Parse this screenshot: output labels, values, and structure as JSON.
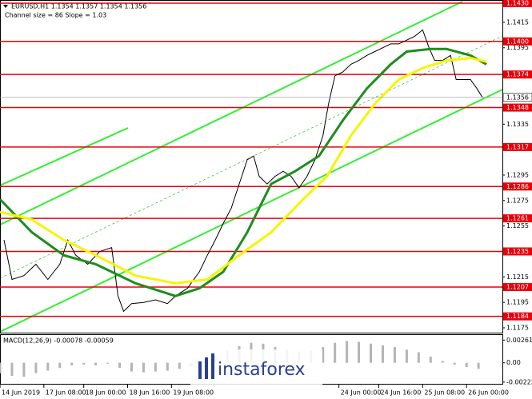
{
  "header": {
    "title": "EURUSD,H1  1.1354 1.1357 1.1354 1.1356",
    "subtitle": "Channel size = 86 Slope = 1.03"
  },
  "watermark": "instaforex",
  "chart_data": [
    {
      "type": "line",
      "xlim": [
        0,
        126
      ],
      "ylim": [
        1.1175,
        1.143
      ],
      "xticks": [
        {
          "value": 0,
          "label": "14 Jun 2019"
        },
        {
          "value": 11,
          "label": "17 Jun 08:00"
        },
        {
          "value": 21,
          "label": "18 Jun 00:00"
        },
        {
          "value": 32,
          "label": "18 Jun 16:00"
        },
        {
          "value": 43,
          "label": "19 Jun 08:00"
        },
        {
          "value": 85,
          "label": "24 Jun 00:00"
        },
        {
          "value": 95,
          "label": "24 Jun 16:00"
        },
        {
          "value": 106,
          "label": "25 Jun 08:00"
        },
        {
          "value": 117,
          "label": "26 Jun 00:00"
        }
      ],
      "yticks": [
        {
          "value": 1.1415,
          "label": "1.1415"
        },
        {
          "value": 1.1395,
          "label": "1.1395"
        },
        {
          "value": 1.1335,
          "label": "1.1335"
        },
        {
          "value": 1.1295,
          "label": "1.1295"
        },
        {
          "value": 1.1275,
          "label": "1.1275"
        },
        {
          "value": 1.1255,
          "label": "1.1255"
        },
        {
          "value": 1.1215,
          "label": "1.1215"
        },
        {
          "value": 1.1195,
          "label": "1.1195"
        },
        {
          "value": 1.1175,
          "label": "1.1175"
        }
      ],
      "levels": [
        {
          "value": 1.143,
          "label": "1.1430"
        },
        {
          "value": 1.14,
          "label": "1.1400"
        },
        {
          "value": 1.1374,
          "label": "1.1374"
        },
        {
          "value": 1.1348,
          "label": "1.1348"
        },
        {
          "value": 1.1317,
          "label": "1.1317"
        },
        {
          "value": 1.1286,
          "label": "1.1286"
        },
        {
          "value": 1.1261,
          "label": "1.1261"
        },
        {
          "value": 1.1235,
          "label": "1.1235"
        },
        {
          "value": 1.1207,
          "label": "1.1207"
        },
        {
          "value": 1.1184,
          "label": "1.1184"
        }
      ],
      "level_color": "#e8000b",
      "current": {
        "value": 1.1356,
        "label": "1.1356"
      },
      "series": [
        {
          "color": "#000000",
          "width": 1,
          "x": [
            1,
            3,
            6,
            9,
            12,
            15,
            17,
            19,
            22,
            25,
            28,
            29.6,
            31,
            33,
            36,
            39,
            42,
            44,
            47,
            50,
            52,
            54,
            56,
            58,
            60,
            62,
            63.6,
            65,
            67,
            69,
            71,
            73,
            75,
            77,
            79,
            81,
            82.4,
            84,
            86,
            88,
            90,
            92,
            94,
            96,
            98,
            100,
            102,
            104,
            106,
            107.6,
            109,
            111,
            113,
            114.4,
            116,
            118,
            119.6,
            121
          ],
          "values": [
            1.1244,
            1.1213,
            1.1216,
            1.1225,
            1.1213,
            1.1225,
            1.1244,
            1.1232,
            1.1225,
            1.1235,
            1.1238,
            1.12,
            1.1188,
            1.1194,
            1.1195,
            1.1197,
            1.1194,
            1.12,
            1.1206,
            1.1219,
            1.1232,
            1.1244,
            1.1257,
            1.1269,
            1.1288,
            1.1307,
            1.131,
            1.1294,
            1.1288,
            1.1294,
            1.1298,
            1.1294,
            1.1285,
            1.1294,
            1.1307,
            1.1326,
            1.1351,
            1.1373,
            1.1376,
            1.1382,
            1.1385,
            1.1389,
            1.1392,
            1.1395,
            1.1398,
            1.1398,
            1.1401,
            1.1404,
            1.1409,
            1.1395,
            1.1385,
            1.1385,
            1.1389,
            1.137,
            1.137,
            1.137,
            1.1363,
            1.1356
          ]
        },
        {
          "color": "#1f8c1f",
          "width": 3,
          "x": [
            0,
            8,
            16,
            24,
            34,
            44,
            50,
            56,
            62,
            68,
            74,
            80,
            86,
            92,
            98,
            102,
            108,
            112,
            118,
            122
          ],
          "values": [
            1.1276,
            1.125,
            1.1232,
            1.1225,
            1.121,
            1.12,
            1.1206,
            1.1219,
            1.125,
            1.1288,
            1.1298,
            1.131,
            1.1338,
            1.1363,
            1.1382,
            1.1392,
            1.1394,
            1.1394,
            1.1389,
            1.1382
          ]
        },
        {
          "color": "#f5f500",
          "width": 3,
          "x": [
            0,
            8,
            16,
            24,
            34,
            44,
            52,
            60,
            68,
            76,
            82,
            88,
            94,
            100,
            106,
            112,
            118,
            122
          ],
          "values": [
            1.1266,
            1.126,
            1.1244,
            1.1232,
            1.1216,
            1.121,
            1.1213,
            1.1232,
            1.125,
            1.1276,
            1.1294,
            1.1326,
            1.1351,
            1.137,
            1.1379,
            1.1385,
            1.1387,
            1.1384
          ]
        }
      ]
    },
    {
      "type": "bar",
      "title": "MACD(12,26,9) -0.00078 -0.00059",
      "color": "#b4b4b4",
      "xlim": [
        0,
        126
      ],
      "ylim": [
        -0.00242,
        0.00319
      ],
      "yticks": [
        0.00261,
        {
          "value": 0,
          "label": "0.00"
        },
        -0.00222
      ],
      "x": [
        0,
        3,
        6,
        9,
        12,
        15,
        18,
        21,
        24,
        27,
        30,
        33,
        36,
        39,
        42,
        45,
        48,
        51,
        54,
        57,
        60,
        63,
        66,
        69,
        72,
        75,
        78,
        81,
        84,
        87,
        90,
        93,
        96,
        99,
        102,
        105,
        108,
        111,
        114,
        117,
        120
      ],
      "values": [
        -0.0012,
        -0.0015,
        -0.0016,
        -0.0012,
        -0.0009,
        -0.0006,
        -0.0003,
        -0.0002,
        -0.0003,
        -0.0001,
        -0.0006,
        -0.001,
        -0.0011,
        -0.001,
        -0.0009,
        -0.0007,
        -0.0004,
        0.0002,
        0.0008,
        0.0014,
        0.0019,
        0.0023,
        0.0022,
        0.0018,
        0.0015,
        0.0013,
        0.0014,
        0.0018,
        0.0023,
        0.0025,
        0.0024,
        0.0022,
        0.002,
        0.0018,
        0.0015,
        0.0012,
        0.0007,
        0.0002,
        -0.0002,
        -0.0005,
        -0.0007
      ]
    }
  ]
}
